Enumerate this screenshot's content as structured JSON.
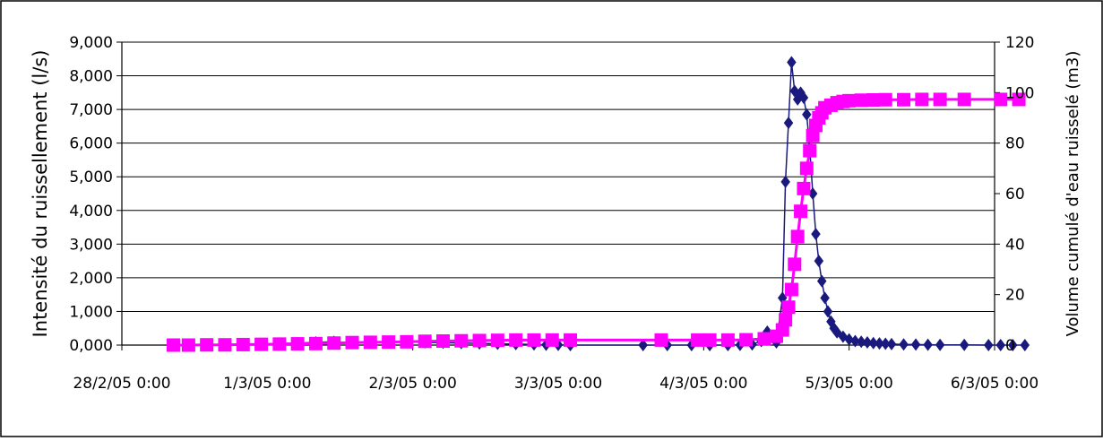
{
  "chart_data": {
    "type": "line",
    "title": "",
    "xlabel": "",
    "ylabel": "Intensité du ruissellement (l/s)",
    "ylabel_right": "Volume cumulé d'eau ruisselé (m3)",
    "x_tick_labels": [
      "28/2/05 0:00",
      "1/3/05 0:00",
      "2/3/05 0:00",
      "3/3/05 0:00",
      "4/3/05 0:00",
      "5/3/05 0:00",
      "6/3/05 0:00"
    ],
    "xlim": [
      "28/2/05 0:00",
      "6/3/05 0:00"
    ],
    "y_tick_labels": [
      "0,000",
      "1,000",
      "2,000",
      "3,000",
      "4,000",
      "5,000",
      "6,000",
      "7,000",
      "8,000",
      "9,000"
    ],
    "ylim": [
      0,
      9000
    ],
    "y2_tick_labels": [
      "0",
      "20",
      "40",
      "60",
      "80",
      "100",
      "120"
    ],
    "y2lim": [
      0,
      120
    ],
    "grid": "horizontal",
    "legend": "none",
    "series": [
      {
        "axis": "left",
        "color": "#1a1a7e",
        "marker": "diamond",
        "points": [
          [
            "28/2/05 8:30",
            0
          ],
          [
            "28/2/05 11:00",
            5
          ],
          [
            "28/2/05 14:00",
            10
          ],
          [
            "28/2/05 17:00",
            15
          ],
          [
            "28/2/05 20:00",
            25
          ],
          [
            "28/2/05 23:00",
            35
          ],
          [
            "1/3/05 2:00",
            45
          ],
          [
            "1/3/05 5:00",
            60
          ],
          [
            "1/3/05 8:00",
            80
          ],
          [
            "1/3/05 11:00",
            100
          ],
          [
            "1/3/05 14:00",
            60
          ],
          [
            "1/3/05 17:00",
            70
          ],
          [
            "1/3/05 20:00",
            80
          ],
          [
            "1/3/05 23:00",
            90
          ],
          [
            "2/3/05 2:00",
            80
          ],
          [
            "2/3/05 5:00",
            70
          ],
          [
            "2/3/05 8:00",
            60
          ],
          [
            "2/3/05 11:00",
            50
          ],
          [
            "2/3/05 14:00",
            40
          ],
          [
            "2/3/05 17:00",
            30
          ],
          [
            "2/3/05 20:00",
            20
          ],
          [
            "2/3/05 22:00",
            10
          ],
          [
            "3/3/05 0:00",
            5
          ],
          [
            "3/3/05 2:00",
            0
          ],
          [
            "3/3/05 14:00",
            0
          ],
          [
            "3/3/05 18:00",
            0
          ],
          [
            "3/3/05 22:00",
            0
          ],
          [
            "4/3/05 1:00",
            0
          ],
          [
            "4/3/05 4:00",
            0
          ],
          [
            "4/3/05 6:00",
            5
          ],
          [
            "4/3/05 8:00",
            20
          ],
          [
            "4/3/05 9:30",
            120
          ],
          [
            "4/3/05 10:30",
            400
          ],
          [
            "4/3/05 12:00",
            80
          ],
          [
            "4/3/05 13:00",
            1400
          ],
          [
            "4/3/05 13:30",
            4850
          ],
          [
            "4/3/05 14:00",
            6600
          ],
          [
            "4/3/05 14:30",
            8400
          ],
          [
            "4/3/05 15:00",
            7550
          ],
          [
            "4/3/05 15:30",
            7300
          ],
          [
            "4/3/05 16:00",
            7500
          ],
          [
            "4/3/05 16:30",
            7350
          ],
          [
            "4/3/05 17:00",
            6850
          ],
          [
            "4/3/05 17:30",
            5850
          ],
          [
            "4/3/05 18:00",
            4500
          ],
          [
            "4/3/05 18:30",
            3300
          ],
          [
            "4/3/05 19:00",
            2500
          ],
          [
            "4/3/05 19:30",
            1900
          ],
          [
            "4/3/05 20:00",
            1400
          ],
          [
            "4/3/05 20:30",
            1000
          ],
          [
            "4/3/05 21:00",
            700
          ],
          [
            "4/3/05 21:30",
            500
          ],
          [
            "4/3/05 22:00",
            380
          ],
          [
            "4/3/05 23:00",
            250
          ],
          [
            "5/3/05 0:00",
            170
          ],
          [
            "5/3/05 1:00",
            120
          ],
          [
            "5/3/05 2:00",
            100
          ],
          [
            "5/3/05 3:00",
            80
          ],
          [
            "5/3/05 4:00",
            60
          ],
          [
            "5/3/05 5:00",
            50
          ],
          [
            "5/3/05 6:00",
            40
          ],
          [
            "5/3/05 7:00",
            30
          ],
          [
            "5/3/05 9:00",
            20
          ],
          [
            "5/3/05 11:00",
            15
          ],
          [
            "5/3/05 13:00",
            10
          ],
          [
            "5/3/05 15:00",
            5
          ],
          [
            "5/3/05 19:00",
            5
          ],
          [
            "5/3/05 23:00",
            0
          ],
          [
            "6/3/05 1:00",
            0
          ],
          [
            "6/3/05 3:00",
            0
          ],
          [
            "6/3/05 5:00",
            0
          ]
        ]
      },
      {
        "axis": "right",
        "color": "#ff00ff",
        "marker": "square",
        "points": [
          [
            "28/2/05 8:30",
            0
          ],
          [
            "28/2/05 11:00",
            0
          ],
          [
            "28/2/05 14:00",
            0.1
          ],
          [
            "28/2/05 17:00",
            0.1
          ],
          [
            "28/2/05 20:00",
            0.2
          ],
          [
            "28/2/05 23:00",
            0.3
          ],
          [
            "1/3/05 2:00",
            0.4
          ],
          [
            "1/3/05 5:00",
            0.5
          ],
          [
            "1/3/05 8:00",
            0.6
          ],
          [
            "1/3/05 11:00",
            0.8
          ],
          [
            "1/3/05 14:00",
            1.0
          ],
          [
            "1/3/05 17:00",
            1.1
          ],
          [
            "1/3/05 20:00",
            1.2
          ],
          [
            "1/3/05 23:00",
            1.3
          ],
          [
            "2/3/05 2:00",
            1.5
          ],
          [
            "2/3/05 5:00",
            1.6
          ],
          [
            "2/3/05 8:00",
            1.7
          ],
          [
            "2/3/05 11:00",
            1.8
          ],
          [
            "2/3/05 14:00",
            1.9
          ],
          [
            "2/3/05 17:00",
            2.0
          ],
          [
            "2/3/05 20:00",
            2.0
          ],
          [
            "2/3/05 23:00",
            2.0
          ],
          [
            "3/3/05 2:00",
            2.0
          ],
          [
            "3/3/05 17:00",
            2.0
          ],
          [
            "3/3/05 23:00",
            2.0
          ],
          [
            "4/3/05 1:00",
            2.0
          ],
          [
            "4/3/05 4:00",
            2.0
          ],
          [
            "4/3/05 7:00",
            2.1
          ],
          [
            "4/3/05 10:00",
            2.5
          ],
          [
            "4/3/05 12:00",
            3.5
          ],
          [
            "4/3/05 13:00",
            6
          ],
          [
            "4/3/05 13:30",
            10
          ],
          [
            "4/3/05 14:00",
            15
          ],
          [
            "4/3/05 14:30",
            22
          ],
          [
            "4/3/05 15:00",
            32
          ],
          [
            "4/3/05 15:30",
            43
          ],
          [
            "4/3/05 16:00",
            53
          ],
          [
            "4/3/05 16:30",
            62
          ],
          [
            "4/3/05 17:00",
            70
          ],
          [
            "4/3/05 17:30",
            77
          ],
          [
            "4/3/05 18:00",
            83
          ],
          [
            "4/3/05 18:30",
            87
          ],
          [
            "4/3/05 19:00",
            90
          ],
          [
            "4/3/05 19:30",
            92
          ],
          [
            "4/3/05 20:00",
            94
          ],
          [
            "4/3/05 21:00",
            95
          ],
          [
            "4/3/05 22:00",
            96
          ],
          [
            "4/3/05 23:00",
            96.5
          ],
          [
            "5/3/05 0:00",
            96.8
          ],
          [
            "5/3/05 2:00",
            97
          ],
          [
            "5/3/05 4:00",
            97.1
          ],
          [
            "5/3/05 6:00",
            97.2
          ],
          [
            "5/3/05 9:00",
            97.2
          ],
          [
            "5/3/05 12:00",
            97.3
          ],
          [
            "5/3/05 15:00",
            97.3
          ],
          [
            "5/3/05 19:00",
            97.3
          ],
          [
            "6/3/05 1:00",
            97.3
          ],
          [
            "6/3/05 4:00",
            97.3
          ]
        ]
      }
    ]
  }
}
